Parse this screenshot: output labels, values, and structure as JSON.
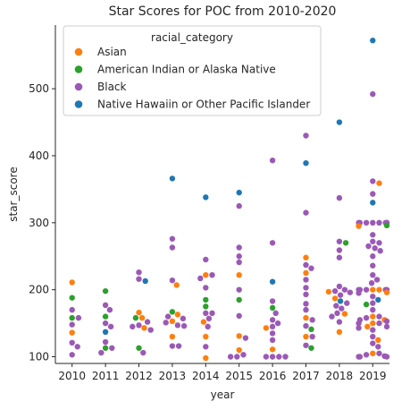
{
  "chart_data": {
    "type": "scatter",
    "subtype": "swarm",
    "title": "Star Scores for POC from 2010-2020",
    "xlabel": "year",
    "ylabel": "star_score",
    "categories": [
      "2010",
      "2011",
      "2012",
      "2013",
      "2014",
      "2015",
      "2016",
      "2017",
      "2018",
      "2019"
    ],
    "ylim": [
      90,
      595
    ],
    "yticks": [
      100,
      200,
      300,
      400,
      500
    ],
    "grid": false,
    "legend": {
      "title": "racial_category",
      "placement": "top-left",
      "entries": [
        {
          "key": "asian",
          "label": "Asian",
          "color": "#ff7f0e"
        },
        {
          "key": "aian",
          "label": "American Indian or Alaska Native",
          "color": "#2ca02c"
        },
        {
          "key": "black",
          "label": "Black",
          "color": "#9b59b6"
        },
        {
          "key": "nhpi",
          "label": "Native Hawaiin or Other Pacific Islander",
          "color": "#1f77b4"
        }
      ]
    },
    "series": [
      {
        "key": "asian",
        "points": [
          [
            "2010",
            211
          ],
          [
            "2010",
            136
          ],
          [
            "2012",
            166
          ],
          [
            "2012",
            158
          ],
          [
            "2012",
            143
          ],
          [
            "2013",
            207
          ],
          [
            "2013",
            163
          ],
          [
            "2013",
            153
          ],
          [
            "2013",
            130
          ],
          [
            "2014",
            222
          ],
          [
            "2014",
            152
          ],
          [
            "2014",
            130
          ],
          [
            "2014",
            98
          ],
          [
            "2015",
            222
          ],
          [
            "2015",
            131
          ],
          [
            "2015",
            110
          ],
          [
            "2016",
            111
          ],
          [
            "2016",
            143
          ],
          [
            "2017",
            248
          ],
          [
            "2017",
            225
          ],
          [
            "2017",
            158
          ],
          [
            "2017",
            130
          ],
          [
            "2018",
            197
          ],
          [
            "2018",
            187
          ],
          [
            "2018",
            164
          ],
          [
            "2018",
            137
          ],
          [
            "2019",
            359
          ],
          [
            "2019",
            295
          ],
          [
            "2019",
            200
          ],
          [
            "2019",
            200
          ],
          [
            "2019",
            196
          ],
          [
            "2019",
            160
          ],
          [
            "2019",
            155
          ],
          [
            "2019",
            150
          ],
          [
            "2019",
            145
          ],
          [
            "2019",
            125
          ],
          [
            "2019",
            105
          ]
        ]
      },
      {
        "key": "aian",
        "points": [
          [
            "2010",
            188
          ],
          [
            "2010",
            158
          ],
          [
            "2011",
            198
          ],
          [
            "2011",
            160
          ],
          [
            "2011",
            113
          ],
          [
            "2012",
            158
          ],
          [
            "2012",
            113
          ],
          [
            "2013",
            167
          ],
          [
            "2014",
            185
          ],
          [
            "2014",
            175
          ],
          [
            "2015",
            185
          ],
          [
            "2016",
            173
          ],
          [
            "2017",
            141
          ],
          [
            "2017",
            113
          ],
          [
            "2018",
            270
          ],
          [
            "2019",
            296
          ],
          [
            "2019",
            178
          ]
        ]
      },
      {
        "key": "black",
        "points": [
          [
            "2010",
            170
          ],
          [
            "2010",
            158
          ],
          [
            "2010",
            148
          ],
          [
            "2010",
            121
          ],
          [
            "2010",
            115
          ],
          [
            "2010",
            103
          ],
          [
            "2011",
            177
          ],
          [
            "2011",
            170
          ],
          [
            "2011",
            150
          ],
          [
            "2011",
            145
          ],
          [
            "2011",
            122
          ],
          [
            "2011",
            113
          ],
          [
            "2011",
            106
          ],
          [
            "2012",
            226
          ],
          [
            "2012",
            216
          ],
          [
            "2012",
            152
          ],
          [
            "2012",
            147
          ],
          [
            "2012",
            145
          ],
          [
            "2012",
            140
          ],
          [
            "2012",
            106
          ],
          [
            "2013",
            276
          ],
          [
            "2013",
            263
          ],
          [
            "2013",
            214
          ],
          [
            "2013",
            160
          ],
          [
            "2013",
            157
          ],
          [
            "2013",
            151
          ],
          [
            "2013",
            147
          ],
          [
            "2013",
            146
          ],
          [
            "2013",
            116
          ],
          [
            "2013",
            116
          ],
          [
            "2014",
            245
          ],
          [
            "2014",
            222
          ],
          [
            "2014",
            217
          ],
          [
            "2014",
            203
          ],
          [
            "2014",
            165
          ],
          [
            "2014",
            165
          ],
          [
            "2014",
            157
          ],
          [
            "2014",
            145
          ],
          [
            "2014",
            115
          ],
          [
            "2015",
            325
          ],
          [
            "2015",
            263
          ],
          [
            "2015",
            250
          ],
          [
            "2015",
            241
          ],
          [
            "2015",
            200
          ],
          [
            "2015",
            161
          ],
          [
            "2015",
            128
          ],
          [
            "2015",
            103
          ],
          [
            "2015",
            100
          ],
          [
            "2015",
            100
          ],
          [
            "2016",
            393
          ],
          [
            "2016",
            270
          ],
          [
            "2016",
            183
          ],
          [
            "2016",
            165
          ],
          [
            "2016",
            155
          ],
          [
            "2016",
            150
          ],
          [
            "2016",
            145
          ],
          [
            "2016",
            135
          ],
          [
            "2016",
            125
          ],
          [
            "2016",
            100
          ],
          [
            "2016",
            100
          ],
          [
            "2016",
            100
          ],
          [
            "2016",
            100
          ],
          [
            "2017",
            430
          ],
          [
            "2017",
            315
          ],
          [
            "2017",
            237
          ],
          [
            "2017",
            232
          ],
          [
            "2017",
            215
          ],
          [
            "2017",
            203
          ],
          [
            "2017",
            193
          ],
          [
            "2017",
            179
          ],
          [
            "2017",
            170
          ],
          [
            "2017",
            155
          ],
          [
            "2017",
            146
          ],
          [
            "2017",
            130
          ],
          [
            "2017",
            117
          ],
          [
            "2018",
            337
          ],
          [
            "2018",
            272
          ],
          [
            "2018",
            259
          ],
          [
            "2018",
            248
          ],
          [
            "2018",
            205
          ],
          [
            "2018",
            200
          ],
          [
            "2018",
            198
          ],
          [
            "2018",
            196
          ],
          [
            "2018",
            192
          ],
          [
            "2018",
            180
          ],
          [
            "2018",
            176
          ],
          [
            "2018",
            172
          ],
          [
            "2018",
            165
          ],
          [
            "2018",
            160
          ],
          [
            "2018",
            152
          ],
          [
            "2019",
            492
          ],
          [
            "2019",
            362
          ],
          [
            "2019",
            343
          ],
          [
            "2019",
            300
          ],
          [
            "2019",
            300
          ],
          [
            "2019",
            300
          ],
          [
            "2019",
            300
          ],
          [
            "2019",
            300
          ],
          [
            "2019",
            300
          ],
          [
            "2019",
            300
          ],
          [
            "2019",
            300
          ],
          [
            "2019",
            282
          ],
          [
            "2019",
            272
          ],
          [
            "2019",
            270
          ],
          [
            "2019",
            265
          ],
          [
            "2019",
            262
          ],
          [
            "2019",
            258
          ],
          [
            "2019",
            250
          ],
          [
            "2019",
            236
          ],
          [
            "2019",
            222
          ],
          [
            "2019",
            215
          ],
          [
            "2019",
            210
          ],
          [
            "2019",
            200
          ],
          [
            "2019",
            200
          ],
          [
            "2019",
            200
          ],
          [
            "2019",
            200
          ],
          [
            "2019",
            200
          ],
          [
            "2019",
            195
          ],
          [
            "2019",
            190
          ],
          [
            "2019",
            180
          ],
          [
            "2019",
            170
          ],
          [
            "2019",
            160
          ],
          [
            "2019",
            158
          ],
          [
            "2019",
            155
          ],
          [
            "2019",
            153
          ],
          [
            "2019",
            150
          ],
          [
            "2019",
            150
          ],
          [
            "2019",
            145
          ],
          [
            "2019",
            143
          ],
          [
            "2019",
            140
          ],
          [
            "2019",
            130
          ],
          [
            "2019",
            120
          ],
          [
            "2019",
            115
          ],
          [
            "2019",
            105
          ],
          [
            "2019",
            103
          ],
          [
            "2019",
            101
          ],
          [
            "2019",
            100
          ],
          [
            "2019",
            100
          ],
          [
            "2019",
            100
          ]
        ]
      },
      {
        "key": "nhpi",
        "points": [
          [
            "2011",
            137
          ],
          [
            "2012",
            213
          ],
          [
            "2013",
            366
          ],
          [
            "2014",
            338
          ],
          [
            "2015",
            345
          ],
          [
            "2016",
            212
          ],
          [
            "2017",
            389
          ],
          [
            "2018",
            450
          ],
          [
            "2018",
            183
          ],
          [
            "2019",
            572
          ],
          [
            "2019",
            330
          ],
          [
            "2019",
            185
          ]
        ]
      }
    ]
  }
}
